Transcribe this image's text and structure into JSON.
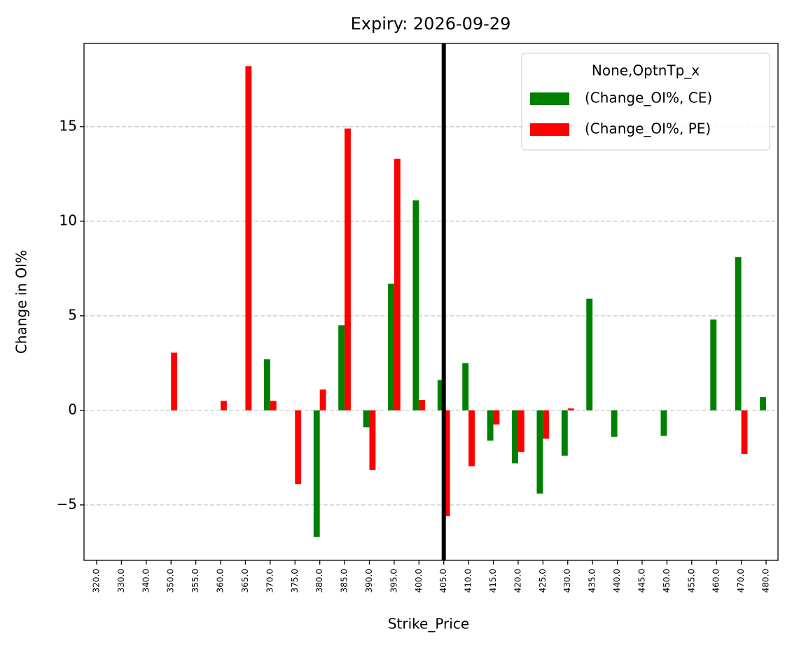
{
  "chart_data": {
    "type": "bar",
    "title": "Expiry: 2026-09-29",
    "x_label": "Strike_Price",
    "y_label": "Change in OI%",
    "categories": [
      "320.0",
      "330.0",
      "340.0",
      "350.0",
      "355.0",
      "360.0",
      "365.0",
      "370.0",
      "375.0",
      "380.0",
      "385.0",
      "390.0",
      "395.0",
      "400.0",
      "405.0",
      "410.0",
      "415.0",
      "420.0",
      "425.0",
      "430.0",
      "435.0",
      "440.0",
      "445.0",
      "450.0",
      "455.0",
      "460.0",
      "470.0",
      "480.0"
    ],
    "series": [
      {
        "name": "(Change_OI%, CE)",
        "color": "#008000",
        "values": [
          null,
          null,
          null,
          null,
          null,
          null,
          null,
          2.7,
          null,
          -6.7,
          4.5,
          -0.9,
          6.7,
          11.1,
          1.6,
          2.5,
          -1.6,
          -2.8,
          -4.4,
          -2.4,
          5.9,
          -1.4,
          null,
          -1.35,
          null,
          4.8,
          8.1,
          0.7
        ]
      },
      {
        "name": "(Change_OI%, PE)",
        "color": "#ff0000",
        "values": [
          null,
          null,
          null,
          3.05,
          null,
          0.5,
          18.2,
          0.5,
          -3.9,
          1.1,
          14.9,
          -3.15,
          13.3,
          0.55,
          -5.6,
          -2.95,
          -0.75,
          -2.2,
          -1.5,
          0.1,
          null,
          null,
          null,
          null,
          null,
          null,
          -2.3,
          null
        ]
      }
    ],
    "legend_title": "None,OptnTp_x",
    "legend": "upper right",
    "vline": "405.0",
    "ylim": [
      -7.93,
      19.4
    ],
    "yticks": [
      {
        "value": -5,
        "label": "−5"
      },
      0,
      5,
      10,
      15
    ],
    "grid": true
  }
}
